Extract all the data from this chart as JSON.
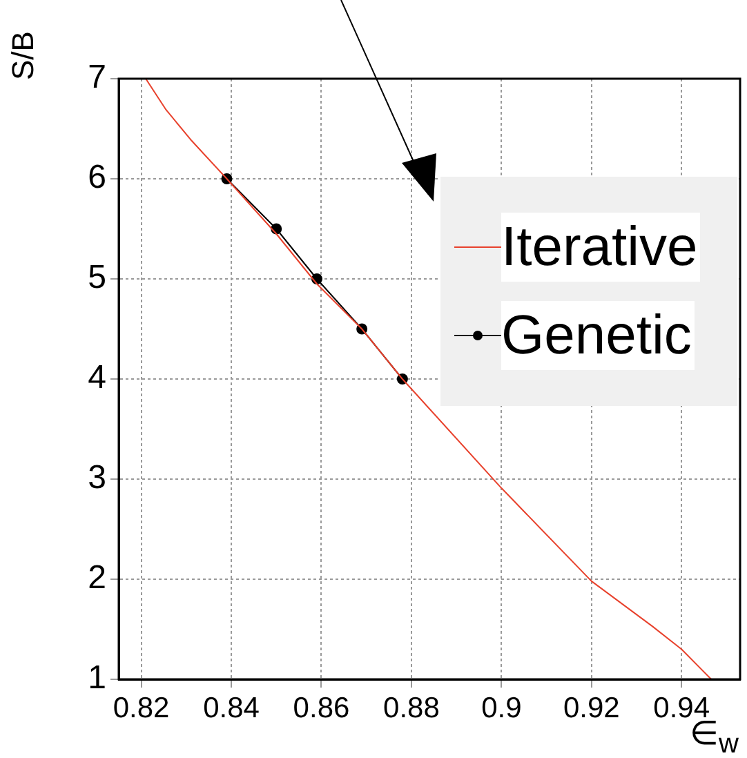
{
  "chart_data": {
    "type": "line",
    "xlabel": "∈$_{w}$",
    "ylabel": "S/B",
    "xlim": [
      0.815,
      0.953
    ],
    "xticks": [
      0.82,
      0.84,
      0.86,
      0.88,
      0.9,
      0.92,
      0.94
    ],
    "ylim": [
      1,
      7
    ],
    "yticks": [
      1,
      2,
      3,
      4,
      5,
      6,
      7
    ],
    "grid": true,
    "legend": "top right",
    "series": [
      {
        "name": "Iterative",
        "color": "#e8412c",
        "marker": "none",
        "x": [
          0.821,
          0.8255,
          0.831,
          0.839,
          0.85,
          0.859,
          0.869,
          0.878,
          0.9,
          0.92,
          0.9335,
          0.94,
          0.9466
        ],
        "values": [
          7,
          6.69,
          6.39,
          6,
          5.45,
          4.95,
          4.5,
          4,
          2.91,
          1.98,
          1.53,
          1.3,
          1
        ]
      },
      {
        "name": "Genetic",
        "color": "#000000",
        "marker": "circle",
        "x": [
          0.839,
          0.85,
          0.859,
          0.869,
          0.878
        ],
        "values": [
          6,
          5.5,
          5,
          4.5,
          4
        ]
      }
    ]
  }
}
